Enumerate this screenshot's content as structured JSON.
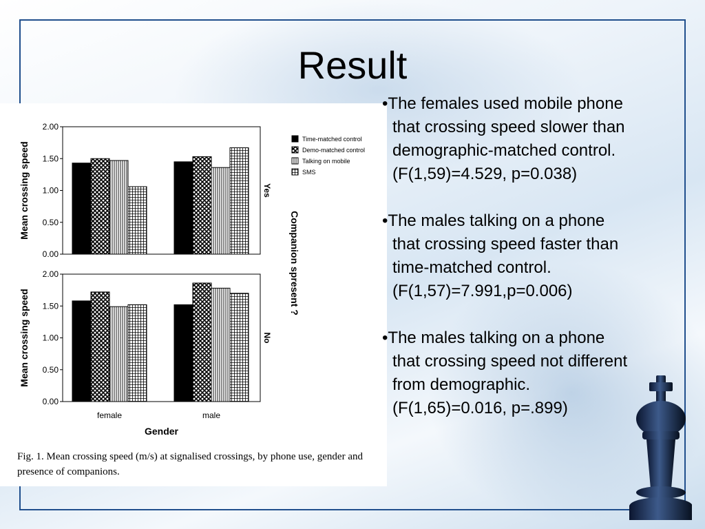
{
  "slide": {
    "title": "Result"
  },
  "figure": {
    "caption": "Fig. 1.  Mean crossing speed (m/s) at signalised crossings, by phone use, gender and presence of companions."
  },
  "chart_data": [
    {
      "type": "bar",
      "panel_label": "Yes",
      "panel_axis_title": "Companion spresent ?",
      "ylabel": "Mean crossing speed",
      "ylim": [
        0,
        2.0
      ],
      "yticks": [
        "0.00",
        "0.50",
        "1.00",
        "1.50",
        "2.00"
      ],
      "categories": [
        "female",
        "male"
      ],
      "series": [
        {
          "name": "Time-matched control",
          "values": [
            1.43,
            1.45
          ]
        },
        {
          "name": "Demo-matched control",
          "values": [
            1.5,
            1.53
          ]
        },
        {
          "name": "Talking on mobile",
          "values": [
            1.47,
            1.36
          ]
        },
        {
          "name": "SMS",
          "values": [
            1.06,
            1.67
          ]
        }
      ],
      "legend_position": "right"
    },
    {
      "type": "bar",
      "panel_label": "No",
      "ylabel": "Mean crossing speed",
      "xlabel": "Gender",
      "ylim": [
        0,
        2.0
      ],
      "yticks": [
        "0.00",
        "0.50",
        "1.00",
        "1.50",
        "2.00"
      ],
      "categories": [
        "female",
        "male"
      ],
      "series": [
        {
          "name": "Time-matched control",
          "values": [
            1.58,
            1.52
          ]
        },
        {
          "name": "Demo-matched control",
          "values": [
            1.72,
            1.86
          ]
        },
        {
          "name": "Talking on mobile",
          "values": [
            1.49,
            1.78
          ]
        },
        {
          "name": "SMS",
          "values": [
            1.52,
            1.7
          ]
        }
      ]
    }
  ],
  "bullets": [
    {
      "lines": [
        "•The females used mobile phone",
        "that crossing speed slower than",
        "demographic-matched control.",
        "(F(1,59)=4.529, p=0.038)"
      ]
    },
    {
      "lines": [
        "•The males talking on a phone",
        "that crossing speed faster than",
        "time-matched control.",
        "(F(1,57)=7.991,p=0.006)"
      ]
    },
    {
      "lines": [
        "•The males talking on a phone",
        "that crossing speed not different",
        "from demographic.",
        "(F(1,65)=0.016, p=.899)"
      ]
    }
  ],
  "colors": {
    "frame": "#1f4e8c",
    "king": "#0f1e3a"
  }
}
